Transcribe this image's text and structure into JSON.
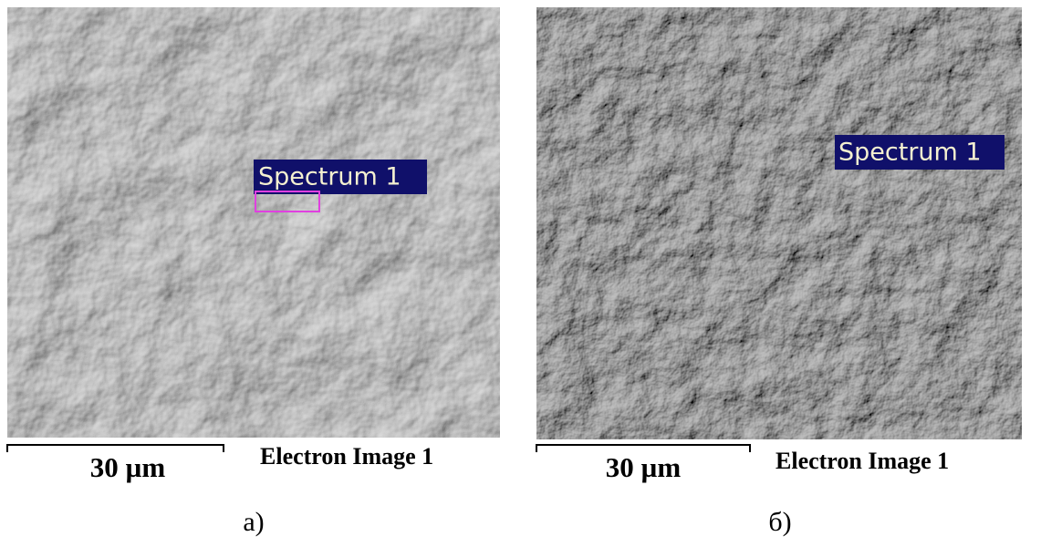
{
  "panels": [
    {
      "spectrum_label": "Spectrum 1",
      "scale_bar": "30 µm",
      "image_caption": "Electron Image 1",
      "caption": "а)"
    },
    {
      "spectrum_label": "Spectrum 1",
      "scale_bar": "30 µm",
      "image_caption": "Electron Image 1",
      "caption": "б)"
    }
  ]
}
